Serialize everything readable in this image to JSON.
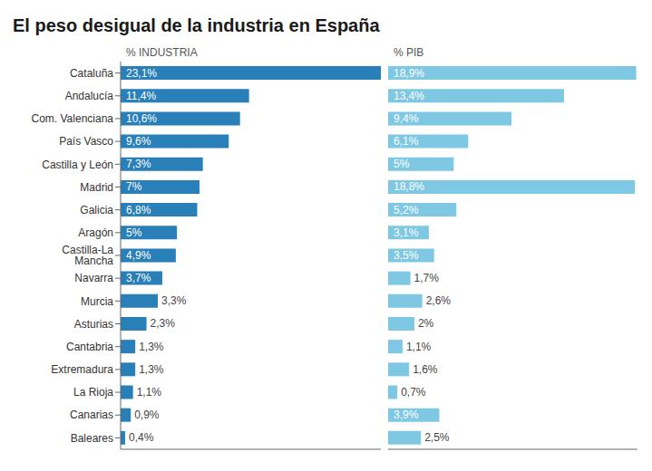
{
  "chart_data": [
    {
      "type": "bar",
      "orientation": "horizontal",
      "title": "El peso desigual de la industria en España",
      "xlabel": "% INDUSTRIA",
      "categories": [
        "Cataluña",
        "Andalucía",
        "Com. Valenciana",
        "País Vasco",
        "Castilla y León",
        "Madrid",
        "Galicia",
        "Aragón",
        "Castilla-La Mancha",
        "Navarra",
        "Murcia",
        "Asturias",
        "Cantabria",
        "Extremadura",
        "La Rioja",
        "Canarias",
        "Baleares"
      ],
      "values": [
        23.1,
        11.4,
        10.6,
        9.6,
        7.3,
        7.0,
        6.8,
        5.0,
        4.9,
        3.7,
        3.3,
        2.3,
        1.3,
        1.3,
        1.1,
        0.9,
        0.4
      ],
      "value_labels": [
        "23,1%",
        "11,4%",
        "10,6%",
        "9,6%",
        "7,3%",
        "7%",
        "6,8%",
        "5%",
        "4,9%",
        "3,7%",
        "3,3%",
        "2,3%",
        "1,3%",
        "1,3%",
        "1,1%",
        "0,9%",
        "0,4%"
      ],
      "data_labels": true,
      "color": "#2980b9",
      "xlim": [
        0,
        23.1
      ],
      "tick_labels": "y"
    },
    {
      "type": "bar",
      "orientation": "horizontal",
      "xlabel": "% PIB",
      "categories": [
        "Cataluña",
        "Andalucía",
        "Com. Valenciana",
        "País Vasco",
        "Castilla y León",
        "Madrid",
        "Galicia",
        "Aragón",
        "Castilla-La Mancha",
        "Navarra",
        "Murcia",
        "Asturias",
        "Cantabria",
        "Extremadura",
        "La Rioja",
        "Canarias",
        "Baleares"
      ],
      "values": [
        18.9,
        13.4,
        9.4,
        6.1,
        5.0,
        18.8,
        5.2,
        3.1,
        3.5,
        1.7,
        2.6,
        2.0,
        1.1,
        1.6,
        0.7,
        3.9,
        2.5
      ],
      "value_labels": [
        "18,9%",
        "13,4%",
        "9,4%",
        "6,1%",
        "5%",
        "18,8%",
        "5,2%",
        "3,1%",
        "3,5%",
        "1,7%",
        "2,6%",
        "2%",
        "1,1%",
        "1,6%",
        "0,7%",
        "3,9%",
        "2,5%"
      ],
      "data_labels": true,
      "color": "#7ec8e3",
      "xlim": [
        0,
        19.0
      ],
      "tick_labels": false
    }
  ]
}
